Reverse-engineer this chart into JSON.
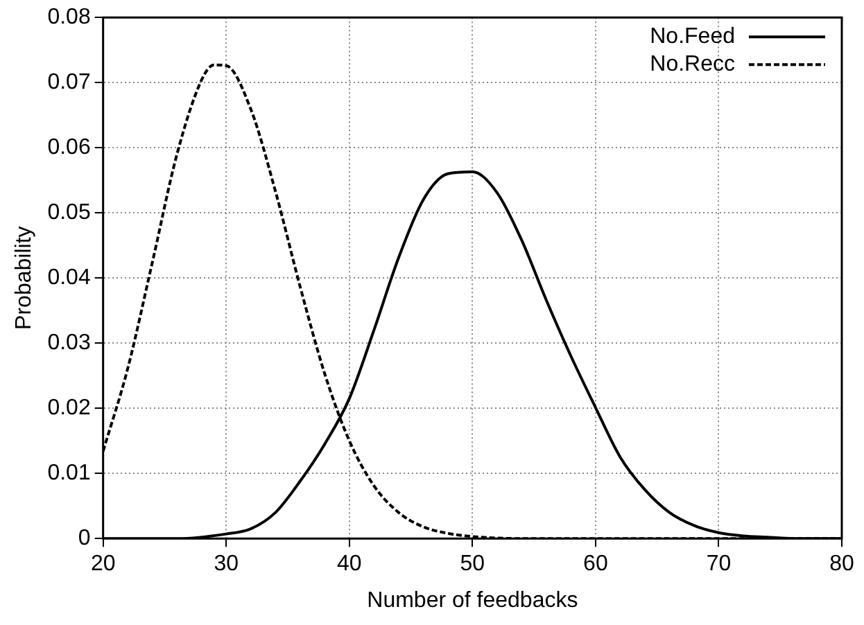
{
  "chart_data": {
    "type": "line",
    "xlabel": "Number of feedbacks",
    "ylabel": "Probability",
    "xlim": [
      20,
      80
    ],
    "xticks": [
      20,
      30,
      40,
      50,
      60,
      70,
      80
    ],
    "ylim": [
      0,
      0.08
    ],
    "yticks": [
      0,
      0.01,
      0.02,
      0.03,
      0.04,
      0.05,
      0.06,
      0.07,
      0.08
    ],
    "grid": true,
    "legend": "top right",
    "marker": "none",
    "series": [
      {
        "name": "No.Feed",
        "color": "#000000",
        "line_style": "solid",
        "x": [
          20,
          26,
          30,
          32,
          34,
          36,
          38,
          40,
          42,
          44,
          46,
          48,
          50,
          52,
          54,
          56,
          58,
          60,
          62,
          64,
          66,
          68,
          70,
          72,
          74,
          76,
          80
        ],
        "values": [
          0,
          0,
          0.0007,
          0.0015,
          0.004,
          0.0088,
          0.0145,
          0.0215,
          0.032,
          0.0431,
          0.052,
          0.056,
          0.0563,
          0.0531,
          0.0458,
          0.0366,
          0.028,
          0.0201,
          0.0125,
          0.0075,
          0.004,
          0.002,
          0.0009,
          0.0004,
          0.0002,
          0,
          0
        ]
      },
      {
        "name": "No.Recc",
        "color": "#000000",
        "line_style": "dashed",
        "x": [
          20,
          22,
          24,
          26,
          28,
          29,
          30,
          32,
          34,
          36,
          38,
          40,
          42,
          44,
          46,
          48,
          50,
          54,
          60,
          80
        ],
        "values": [
          0.0134,
          0.0261,
          0.0424,
          0.059,
          0.0704,
          0.0727,
          0.0726,
          0.0659,
          0.0533,
          0.0387,
          0.0253,
          0.015,
          0.0081,
          0.004,
          0.0018,
          0.0008,
          0.0003,
          0,
          0,
          0
        ]
      }
    ]
  }
}
